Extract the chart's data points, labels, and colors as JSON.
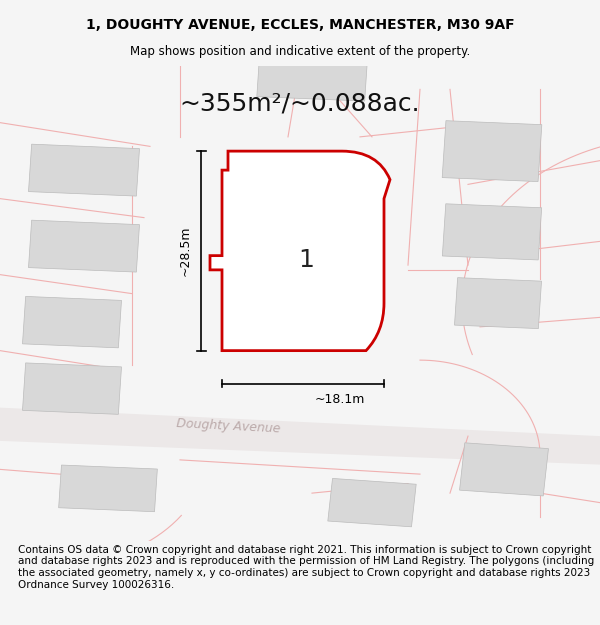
{
  "title_line1": "1, DOUGHTY AVENUE, ECCLES, MANCHESTER, M30 9AF",
  "title_line2": "Map shows position and indicative extent of the property.",
  "area_text": "~355m²/~0.088ac.",
  "dim_width": "~18.1m",
  "dim_height": "~28.5m",
  "label_number": "1",
  "street_name": "Doughty Avenue",
  "footer_text": "Contains OS data © Crown copyright and database right 2021. This information is subject to Crown copyright and database rights 2023 and is reproduced with the permission of HM Land Registry. The polygons (including the associated geometry, namely x, y co-ordinates) are subject to Crown copyright and database rights 2023 Ordnance Survey 100026316.",
  "bg_color": "#f5f5f5",
  "map_bg": "#ffffff",
  "plot_fill": "#ffffff",
  "plot_stroke": "#cc0000",
  "building_fill": "#d8d8d8",
  "road_color": "#e8e8e8",
  "faint_line_color": "#f0b0b0",
  "title_fontsize": 10,
  "area_fontsize": 18,
  "footer_fontsize": 7.5
}
